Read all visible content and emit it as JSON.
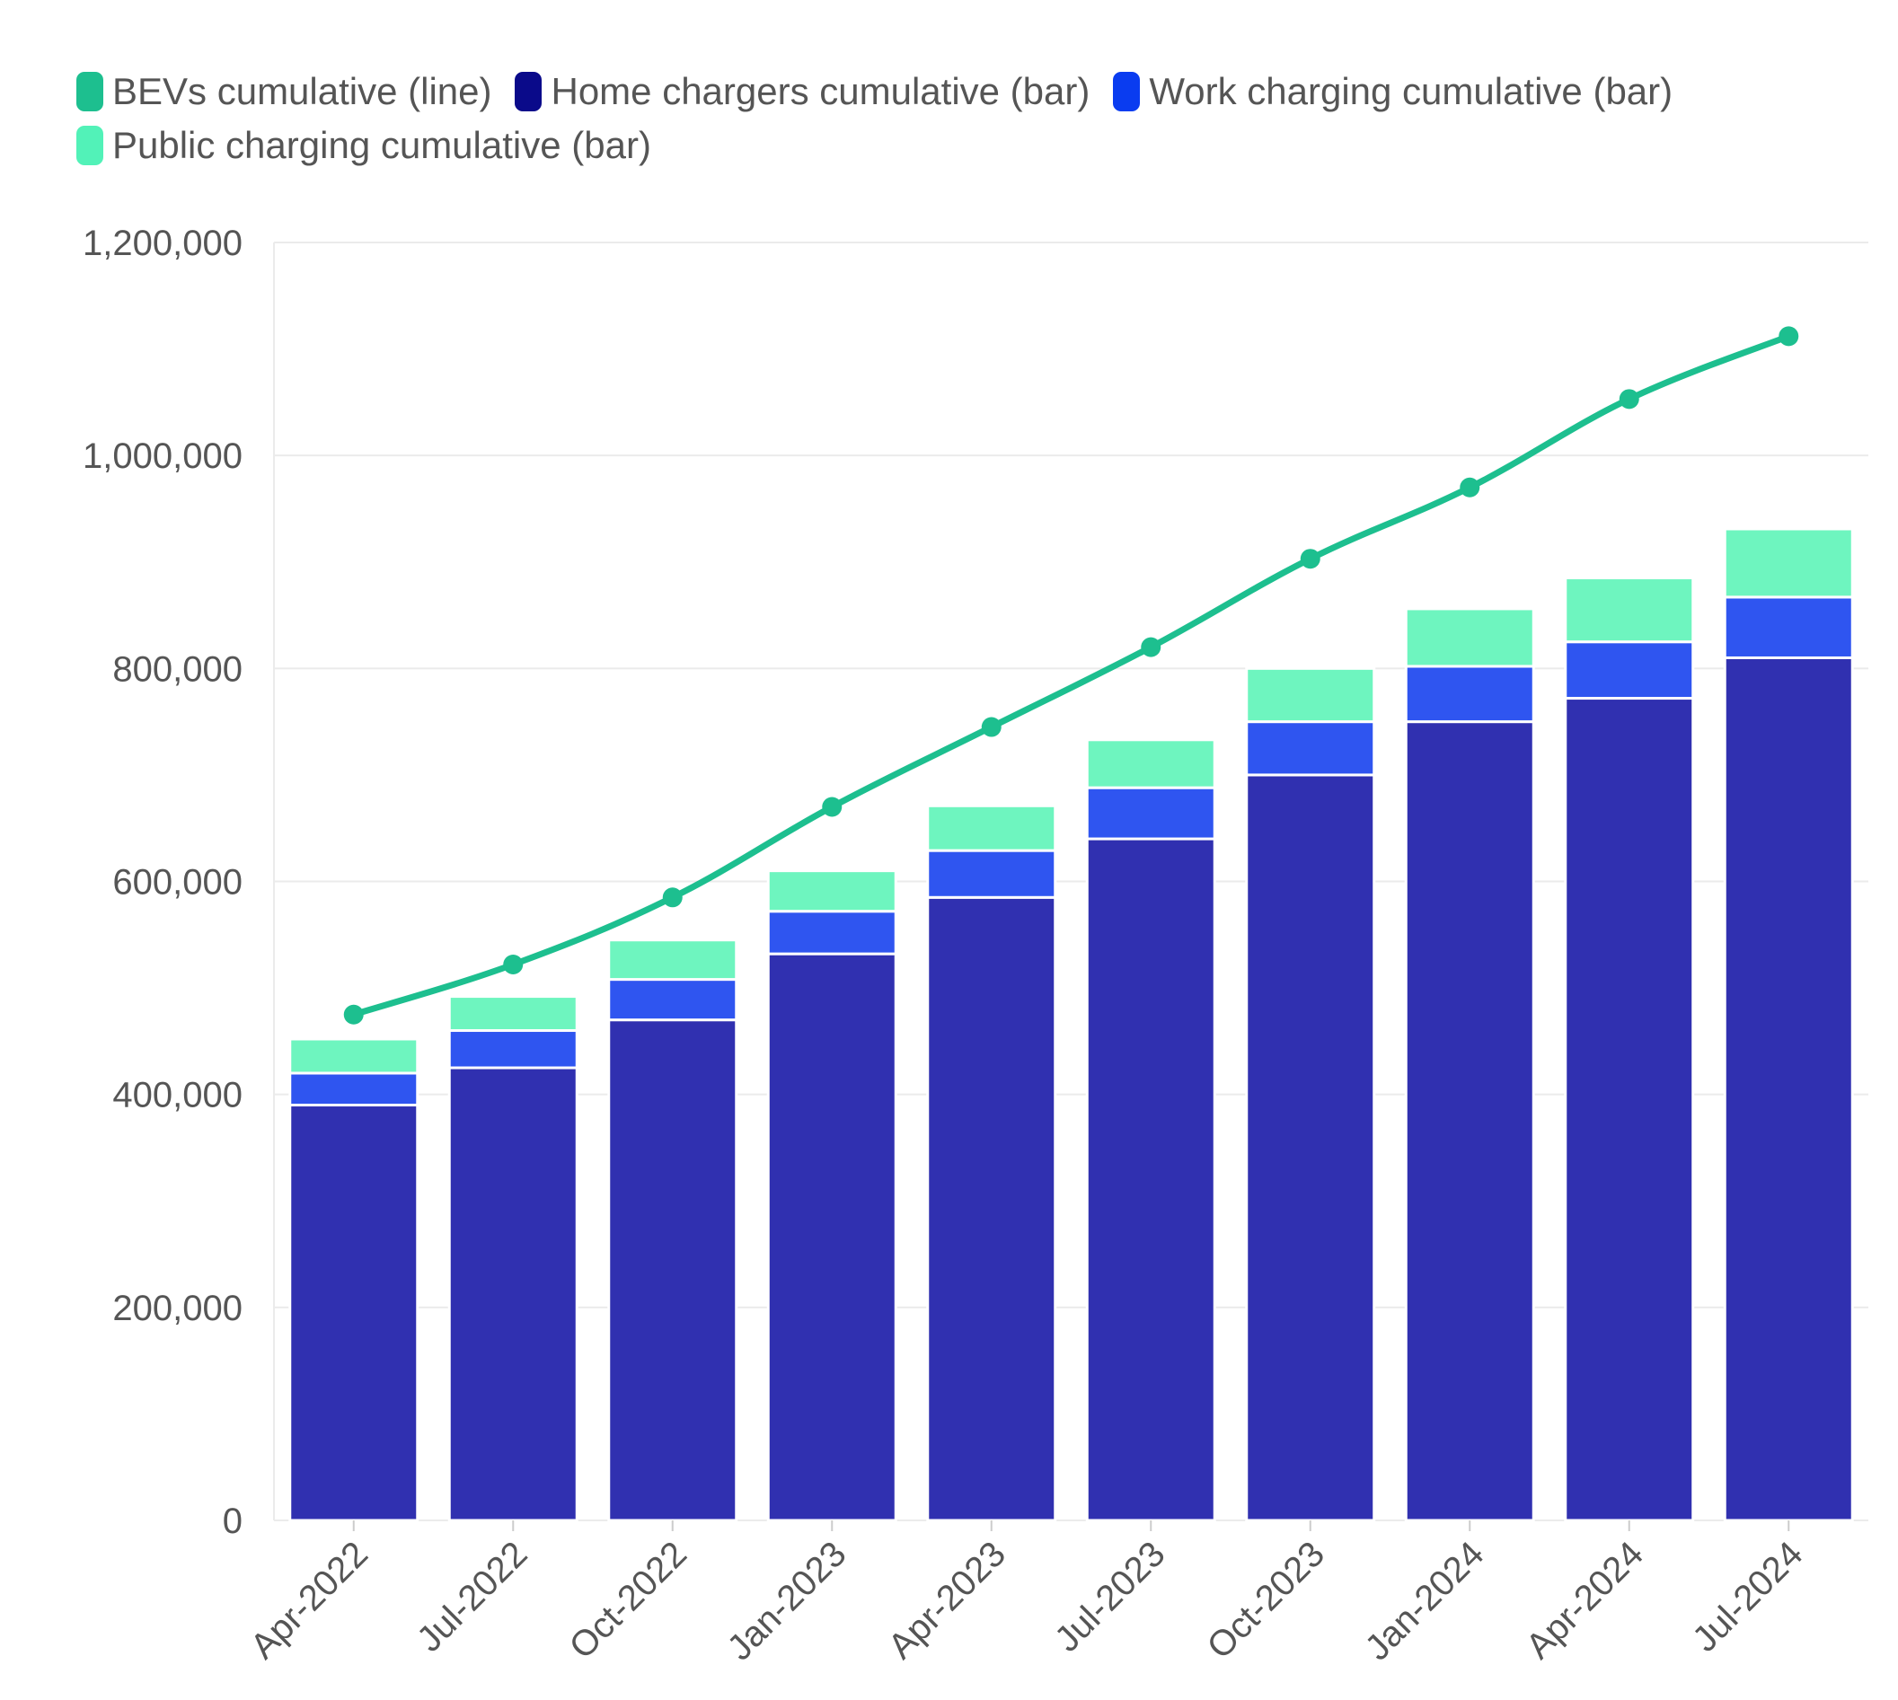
{
  "colors": {
    "bevs": "#1dbf8f",
    "home": "#3030b0",
    "work": "#2f55f0",
    "public": "#6ef5bf",
    "legend_home": "#0a0a8a",
    "legend_work": "#0a3cf0",
    "legend_public": "#52f2b8",
    "grid": "#ebebeb",
    "text": "#555555"
  },
  "legend": [
    {
      "key": "bevs",
      "label": "BEVs cumulative (line)",
      "color": "#1dbf8f"
    },
    {
      "key": "home",
      "label": "Home chargers cumulative (bar)",
      "color": "#0a0a8a"
    },
    {
      "key": "work",
      "label": "Work charging cumulative (bar)",
      "color": "#0a3cf0"
    },
    {
      "key": "public",
      "label": "Public charging cumulative (bar)",
      "color": "#52f2b8"
    }
  ],
  "chart_data": {
    "type": "bar",
    "stacked": true,
    "categories": [
      "Apr-2022",
      "Jul-2022",
      "Oct-2022",
      "Jan-2023",
      "Apr-2023",
      "Jul-2023",
      "Oct-2023",
      "Jan-2024",
      "Apr-2024",
      "Jul-2024"
    ],
    "series": [
      {
        "key": "home",
        "name": "Home chargers cumulative (bar)",
        "type": "bar",
        "values": [
          390000,
          425000,
          470000,
          532000,
          585000,
          640000,
          700000,
          750000,
          772000,
          810000
        ]
      },
      {
        "key": "work",
        "name": "Work charging cumulative (bar)",
        "type": "bar",
        "values": [
          30000,
          35000,
          38000,
          40000,
          44000,
          48000,
          50000,
          52000,
          53000,
          57000
        ]
      },
      {
        "key": "public",
        "name": "Public charging cumulative (bar)",
        "type": "bar",
        "values": [
          32000,
          32000,
          37000,
          38000,
          42000,
          45000,
          50000,
          54000,
          60000,
          64000
        ]
      },
      {
        "key": "bevs",
        "name": "BEVs cumulative (line)",
        "type": "line",
        "values": [
          475000,
          522000,
          585000,
          670000,
          745000,
          820000,
          903000,
          970000,
          1053000,
          1112000
        ]
      }
    ],
    "y_ticks": [
      "0",
      "200,000",
      "400,000",
      "600,000",
      "800,000",
      "1,000,000",
      "1,200,000"
    ],
    "ylim": [
      0,
      1200000
    ],
    "grid": true,
    "legend_position": "top-left"
  }
}
